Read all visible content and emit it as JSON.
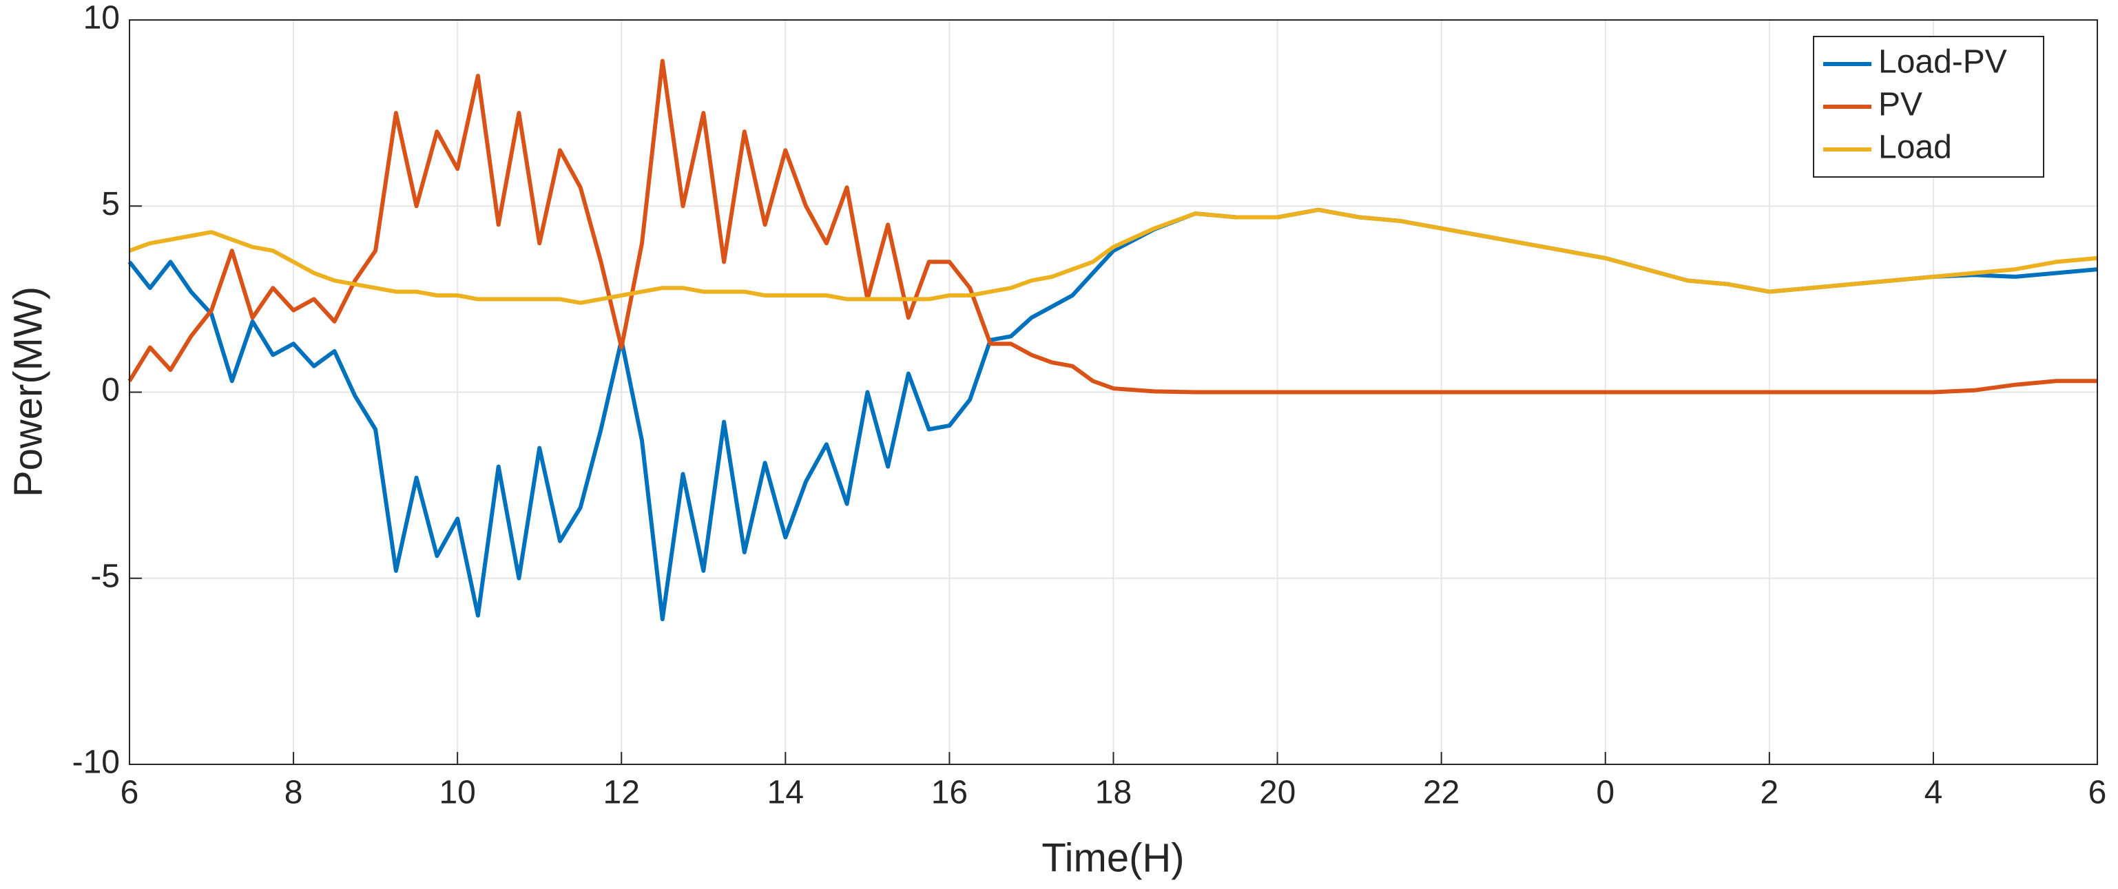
{
  "chart_data": {
    "type": "line",
    "xlabel": "Time(H)",
    "ylabel": "Power(MW)",
    "x": [
      6,
      6.25,
      6.5,
      6.75,
      7,
      7.25,
      7.5,
      7.75,
      8,
      8.25,
      8.5,
      8.75,
      9,
      9.25,
      9.5,
      9.75,
      10,
      10.25,
      10.5,
      10.75,
      11,
      11.25,
      11.5,
      11.75,
      12,
      12.25,
      12.5,
      12.75,
      13,
      13.25,
      13.5,
      13.75,
      14,
      14.25,
      14.5,
      14.75,
      15,
      15.25,
      15.5,
      15.75,
      16,
      16.25,
      16.5,
      16.75,
      17,
      17.25,
      17.5,
      17.75,
      18,
      18.5,
      19,
      19.5,
      20,
      20.5,
      21,
      21.5,
      22,
      22.5,
      23,
      23.5,
      24,
      24.5,
      25,
      25.5,
      26,
      26.5,
      27,
      27.5,
      28,
      28.5,
      29,
      29.5,
      30
    ],
    "series": [
      {
        "name": "Load-PV",
        "color": "#0072BD",
        "values": [
          3.5,
          2.8,
          3.5,
          2.7,
          2.1,
          0.3,
          1.9,
          1.0,
          1.3,
          0.7,
          1.1,
          -0.1,
          -1.0,
          -4.8,
          -2.3,
          -4.4,
          -3.4,
          -6.0,
          -2.0,
          -5.0,
          -1.5,
          -4.0,
          -3.1,
          -1.0,
          1.4,
          -1.3,
          -6.1,
          -2.2,
          -4.8,
          -0.8,
          -4.3,
          -1.9,
          -3.9,
          -2.4,
          -1.4,
          -3.0,
          0.0,
          -2.0,
          0.5,
          -1.0,
          -0.9,
          -0.2,
          1.4,
          1.5,
          2.0,
          2.3,
          2.6,
          3.2,
          3.8,
          4.38,
          4.8,
          4.7,
          4.7,
          4.9,
          4.7,
          4.6,
          4.4,
          4.2,
          4.0,
          3.8,
          3.6,
          3.3,
          3.0,
          2.9,
          2.7,
          2.8,
          2.9,
          3.0,
          3.1,
          3.15,
          3.1,
          3.2,
          3.3
        ]
      },
      {
        "name": "PV",
        "color": "#D95319",
        "values": [
          0.3,
          1.2,
          0.6,
          1.5,
          2.2,
          3.8,
          2.0,
          2.8,
          2.2,
          2.5,
          1.9,
          3.0,
          3.8,
          7.5,
          5.0,
          7.0,
          6.0,
          8.5,
          4.5,
          7.5,
          4.0,
          6.5,
          5.5,
          3.5,
          1.2,
          4.0,
          8.9,
          5.0,
          7.5,
          3.5,
          7.0,
          4.5,
          6.5,
          5.0,
          4.0,
          5.5,
          2.5,
          4.5,
          2.0,
          3.5,
          3.5,
          2.8,
          1.3,
          1.3,
          1.0,
          0.8,
          0.7,
          0.3,
          0.1,
          0.02,
          0,
          0,
          0,
          0,
          0,
          0,
          0,
          0,
          0,
          0,
          0,
          0,
          0,
          0,
          0,
          0,
          0,
          0,
          0,
          0.05,
          0.2,
          0.3,
          0.3
        ]
      },
      {
        "name": "Load",
        "color": "#EDB120",
        "values": [
          3.8,
          4.0,
          4.1,
          4.2,
          4.3,
          4.1,
          3.9,
          3.8,
          3.5,
          3.2,
          3.0,
          2.9,
          2.8,
          2.7,
          2.7,
          2.6,
          2.6,
          2.5,
          2.5,
          2.5,
          2.5,
          2.5,
          2.4,
          2.5,
          2.6,
          2.7,
          2.8,
          2.8,
          2.7,
          2.7,
          2.7,
          2.6,
          2.6,
          2.6,
          2.6,
          2.5,
          2.5,
          2.5,
          2.5,
          2.5,
          2.6,
          2.6,
          2.7,
          2.8,
          3.0,
          3.1,
          3.3,
          3.5,
          3.9,
          4.4,
          4.8,
          4.7,
          4.7,
          4.9,
          4.7,
          4.6,
          4.4,
          4.2,
          4.0,
          3.8,
          3.6,
          3.3,
          3.0,
          2.9,
          2.7,
          2.8,
          2.9,
          3.0,
          3.1,
          3.2,
          3.3,
          3.5,
          3.6
        ]
      }
    ],
    "xlim": [
      6,
      30
    ],
    "xticks": [
      6,
      8,
      10,
      12,
      14,
      16,
      18,
      20,
      22,
      {
        "value": 24,
        "label": "0"
      },
      {
        "value": 26,
        "label": "2"
      },
      {
        "value": 28,
        "label": "4"
      },
      {
        "value": 30,
        "label": "6"
      }
    ],
    "ylim": [
      -10,
      10
    ],
    "yticks": [
      -10,
      -5,
      0,
      5,
      10
    ],
    "grid": true,
    "legend": "upper right"
  }
}
